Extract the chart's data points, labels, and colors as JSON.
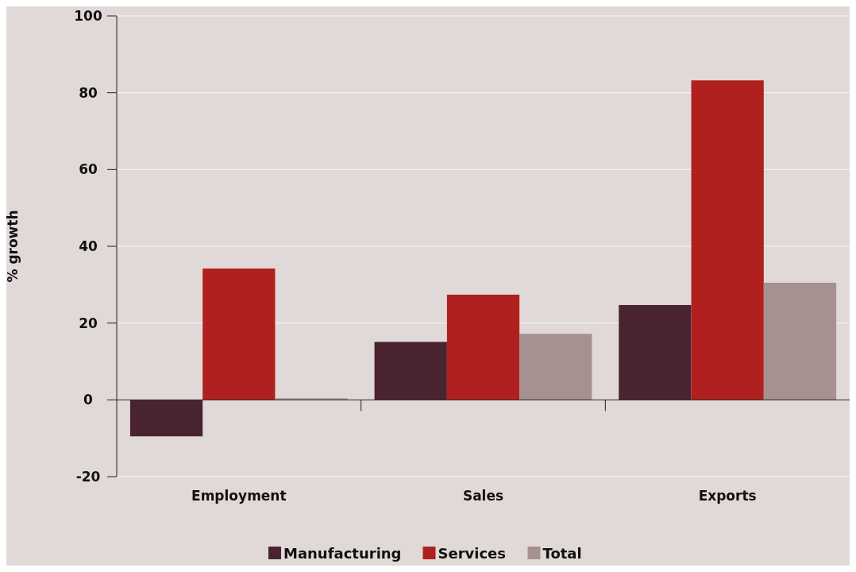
{
  "chart_data": {
    "type": "bar",
    "ylabel": "% growth",
    "categories": [
      "Employment",
      "Sales",
      "Exports"
    ],
    "series": [
      {
        "name": "Manufacturing",
        "color": "#4a2330",
        "values": [
          -9.5,
          15.1,
          24.7
        ]
      },
      {
        "name": "Services",
        "color": "#b0201f",
        "values": [
          34.2,
          27.4,
          83.2
        ]
      },
      {
        "name": "Total",
        "color": "#a69190",
        "values": [
          0.4,
          17.2,
          30.5
        ]
      }
    ],
    "ylim": [
      -20,
      100
    ],
    "yticks": [
      -20,
      0,
      20,
      40,
      60,
      80,
      100
    ],
    "grid": "y",
    "legend": "bottom"
  }
}
